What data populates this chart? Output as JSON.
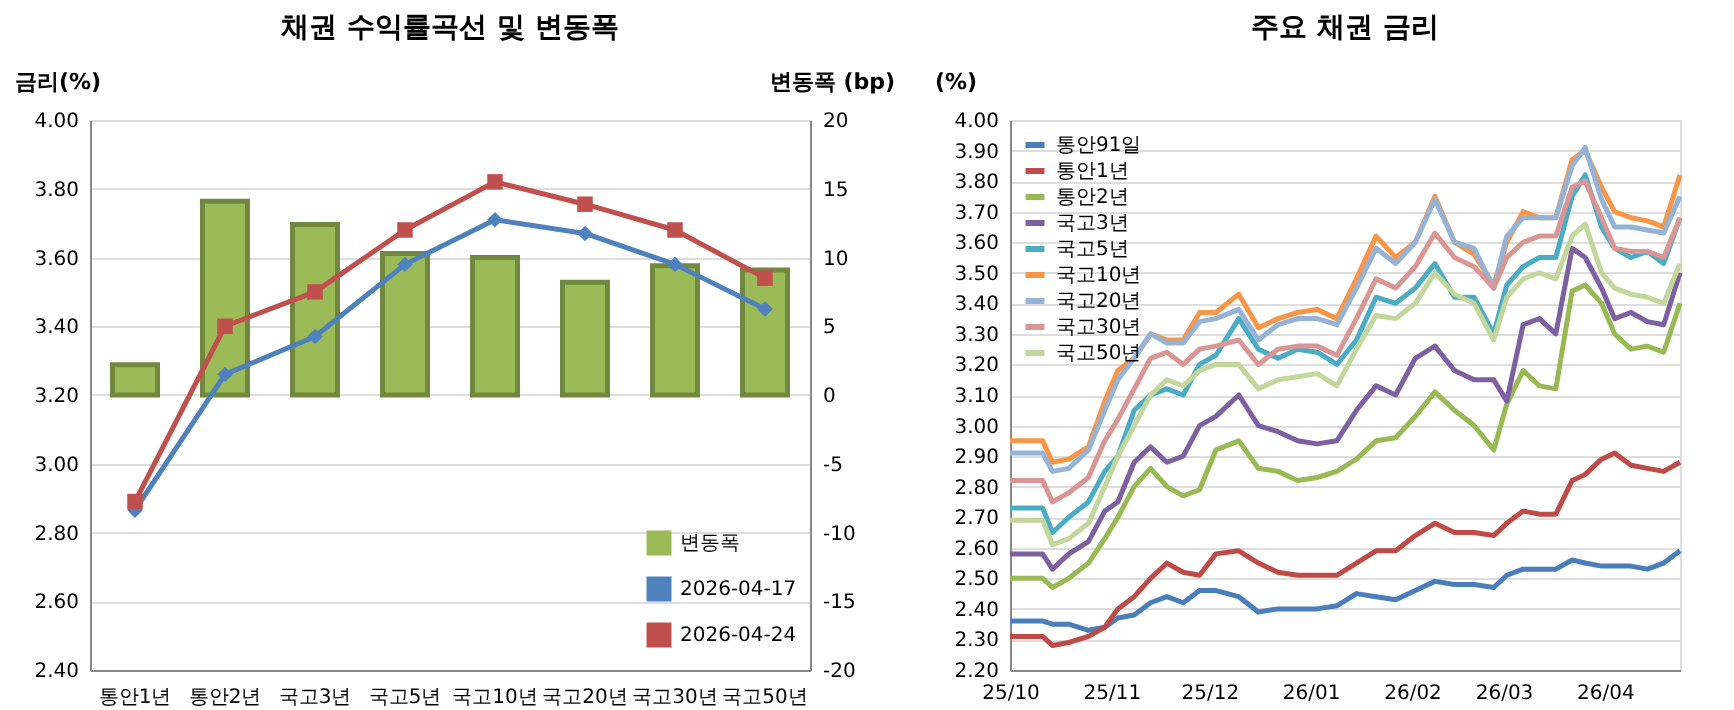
{
  "chart_data": [
    {
      "type": "bar",
      "title": "채권 수익률곡선 및 변동폭",
      "ylabel": "금리(%)",
      "y2label": "변동폭 (bp)",
      "categories": [
        "통안1년",
        "통안2년",
        "국고3년",
        "국고5년",
        "국고10년",
        "국고20년",
        "국고30년",
        "국고50년"
      ],
      "series": [
        {
          "name": "변동폭",
          "type": "bar",
          "axis": "y2",
          "color": "#9bbb59",
          "values": [
            2.2,
            14.1,
            12.4,
            10.3,
            10.0,
            8.2,
            9.4,
            9.1
          ]
        },
        {
          "name": "2026-04-17",
          "type": "line",
          "color": "#4f81bd",
          "marker": "diamond",
          "values": [
            2.865,
            3.26,
            3.37,
            3.58,
            3.71,
            3.67,
            3.58,
            3.45
          ]
        },
        {
          "name": "2026-04-24",
          "type": "line",
          "color": "#c0504d",
          "marker": "square",
          "values": [
            2.89,
            3.4,
            3.5,
            3.68,
            3.82,
            3.755,
            3.68,
            3.54
          ]
        }
      ],
      "ylim": [
        2.4,
        4.0
      ],
      "yticks": [
        {
          "value": 2.4,
          "label": "2.40"
        },
        {
          "value": 2.6,
          "label": "2.60"
        },
        {
          "value": 2.8,
          "label": "2.80"
        },
        {
          "value": 3.0,
          "label": "3.00"
        },
        {
          "value": 3.2,
          "label": "3.20"
        },
        {
          "value": 3.4,
          "label": "3.40"
        },
        {
          "value": 3.6,
          "label": "3.60"
        },
        {
          "value": 3.8,
          "label": "3.80"
        },
        {
          "value": 4.0,
          "label": "4.00"
        }
      ],
      "y2lim": [
        -20,
        20
      ],
      "y2ticks": [
        -20,
        -15,
        -10,
        -5,
        0,
        5,
        10,
        15,
        20
      ],
      "grid": "y",
      "legend": "bottom right"
    },
    {
      "type": "line",
      "title": "주요 채권 금리",
      "ylabel": "(%)",
      "marker": "none",
      "line_style": "solid",
      "x": [
        "2025-10-01",
        "2025-10-11",
        "2025-10-14",
        "2025-10-19",
        "2025-10-25",
        "2025-10-30",
        "2025-11-03",
        "2025-11-08",
        "2025-11-13",
        "2025-11-18",
        "2025-11-23",
        "2025-11-28",
        "2025-12-03",
        "2025-12-10",
        "2025-12-16",
        "2025-12-22",
        "2025-12-28",
        "2026-01-03",
        "2026-01-09",
        "2026-01-15",
        "2026-01-21",
        "2026-01-27",
        "2026-02-02",
        "2026-02-08",
        "2026-02-14",
        "2026-02-20",
        "2026-02-26",
        "2026-03-02",
        "2026-03-07",
        "2026-03-12",
        "2026-03-17",
        "2026-03-22",
        "2026-03-26",
        "2026-03-31",
        "2026-04-04",
        "2026-04-09",
        "2026-04-14",
        "2026-04-19",
        "2026-04-24"
      ],
      "series": [
        {
          "name": "통안91일",
          "color": "#4a7ebb",
          "values": [
            2.36,
            2.36,
            2.35,
            2.35,
            2.33,
            2.34,
            2.37,
            2.38,
            2.42,
            2.44,
            2.42,
            2.46,
            2.46,
            2.44,
            2.39,
            2.4,
            2.4,
            2.4,
            2.41,
            2.45,
            2.44,
            2.43,
            2.46,
            2.49,
            2.48,
            2.48,
            2.47,
            2.51,
            2.53,
            2.53,
            2.53,
            2.56,
            2.55,
            2.54,
            2.54,
            2.54,
            2.53,
            2.55,
            2.59
          ]
        },
        {
          "name": "통안1년",
          "color": "#be4b48",
          "values": [
            2.31,
            2.31,
            2.28,
            2.29,
            2.31,
            2.34,
            2.4,
            2.44,
            2.5,
            2.55,
            2.52,
            2.51,
            2.58,
            2.59,
            2.55,
            2.52,
            2.51,
            2.51,
            2.51,
            2.55,
            2.59,
            2.59,
            2.64,
            2.68,
            2.65,
            2.65,
            2.64,
            2.68,
            2.72,
            2.71,
            2.71,
            2.82,
            2.84,
            2.89,
            2.91,
            2.87,
            2.86,
            2.85,
            2.88
          ]
        },
        {
          "name": "통안2년",
          "color": "#98b954",
          "values": [
            2.5,
            2.5,
            2.47,
            2.5,
            2.55,
            2.63,
            2.7,
            2.8,
            2.86,
            2.8,
            2.77,
            2.79,
            2.92,
            2.95,
            2.86,
            2.85,
            2.82,
            2.83,
            2.85,
            2.89,
            2.95,
            2.96,
            3.03,
            3.11,
            3.05,
            3.0,
            2.92,
            3.07,
            3.18,
            3.13,
            3.12,
            3.44,
            3.46,
            3.4,
            3.3,
            3.25,
            3.26,
            3.24,
            3.4
          ]
        },
        {
          "name": "국고3년",
          "color": "#7d60a0",
          "values": [
            2.58,
            2.58,
            2.53,
            2.58,
            2.62,
            2.72,
            2.75,
            2.88,
            2.93,
            2.88,
            2.9,
            3.0,
            3.03,
            3.1,
            3.0,
            2.98,
            2.95,
            2.94,
            2.95,
            3.05,
            3.13,
            3.1,
            3.22,
            3.26,
            3.18,
            3.15,
            3.15,
            3.08,
            3.33,
            3.35,
            3.3,
            3.58,
            3.55,
            3.45,
            3.35,
            3.37,
            3.34,
            3.33,
            3.5
          ]
        },
        {
          "name": "국고5년",
          "color": "#4bacc6",
          "values": [
            2.73,
            2.73,
            2.65,
            2.7,
            2.75,
            2.85,
            2.9,
            3.05,
            3.1,
            3.12,
            3.1,
            3.2,
            3.23,
            3.35,
            3.25,
            3.22,
            3.25,
            3.24,
            3.2,
            3.28,
            3.42,
            3.4,
            3.45,
            3.53,
            3.42,
            3.42,
            3.3,
            3.46,
            3.52,
            3.55,
            3.55,
            3.75,
            3.82,
            3.65,
            3.58,
            3.55,
            3.57,
            3.53,
            3.68
          ]
        },
        {
          "name": "국고10년",
          "color": "#f79646",
          "values": [
            2.95,
            2.95,
            2.88,
            2.89,
            2.93,
            3.08,
            3.18,
            3.22,
            3.3,
            3.28,
            3.28,
            3.37,
            3.37,
            3.43,
            3.32,
            3.35,
            3.37,
            3.38,
            3.35,
            3.48,
            3.62,
            3.55,
            3.6,
            3.75,
            3.6,
            3.56,
            3.46,
            3.6,
            3.7,
            3.68,
            3.68,
            3.87,
            3.9,
            3.78,
            3.7,
            3.68,
            3.67,
            3.65,
            3.82
          ]
        },
        {
          "name": "국고20년",
          "color": "#95b3d7",
          "values": [
            2.91,
            2.91,
            2.85,
            2.86,
            2.92,
            3.05,
            3.15,
            3.22,
            3.3,
            3.27,
            3.27,
            3.34,
            3.35,
            3.38,
            3.28,
            3.33,
            3.35,
            3.35,
            3.33,
            3.45,
            3.58,
            3.53,
            3.6,
            3.74,
            3.6,
            3.58,
            3.45,
            3.62,
            3.68,
            3.68,
            3.68,
            3.85,
            3.91,
            3.74,
            3.65,
            3.65,
            3.64,
            3.63,
            3.75
          ]
        },
        {
          "name": "국고30년",
          "color": "#d99694",
          "values": [
            2.82,
            2.82,
            2.75,
            2.78,
            2.83,
            2.95,
            3.02,
            3.12,
            3.22,
            3.24,
            3.2,
            3.25,
            3.26,
            3.28,
            3.2,
            3.25,
            3.26,
            3.26,
            3.23,
            3.35,
            3.48,
            3.45,
            3.52,
            3.63,
            3.55,
            3.52,
            3.45,
            3.55,
            3.6,
            3.62,
            3.62,
            3.78,
            3.8,
            3.68,
            3.58,
            3.57,
            3.57,
            3.55,
            3.68
          ]
        },
        {
          "name": "국고50년",
          "color": "#c3d69b",
          "values": [
            2.69,
            2.69,
            2.61,
            2.63,
            2.68,
            2.8,
            2.9,
            3.0,
            3.1,
            3.15,
            3.13,
            3.18,
            3.2,
            3.2,
            3.12,
            3.15,
            3.16,
            3.17,
            3.13,
            3.25,
            3.36,
            3.35,
            3.4,
            3.5,
            3.43,
            3.4,
            3.28,
            3.42,
            3.48,
            3.5,
            3.48,
            3.62,
            3.66,
            3.5,
            3.45,
            3.43,
            3.42,
            3.4,
            3.53
          ]
        }
      ],
      "xlim": [
        "2025-10-01",
        "2026-04-24"
      ],
      "xticks": [
        {
          "value": "2025-10-01",
          "label": "25/10"
        },
        {
          "value": "2025-11-01",
          "label": "25/11"
        },
        {
          "value": "2025-12-01",
          "label": "25/12"
        },
        {
          "value": "2026-01-01",
          "label": "26/01"
        },
        {
          "value": "2026-02-01",
          "label": "26/02"
        },
        {
          "value": "2026-03-01",
          "label": "26/03"
        },
        {
          "value": "2026-04-01",
          "label": "26/04"
        }
      ],
      "ylim": [
        2.2,
        4.0
      ],
      "yticks": [
        {
          "value": 2.2,
          "label": "2.20"
        },
        {
          "value": 2.3,
          "label": "2.30"
        },
        {
          "value": 2.4,
          "label": "2.40"
        },
        {
          "value": 2.5,
          "label": "2.50"
        },
        {
          "value": 2.6,
          "label": "2.60"
        },
        {
          "value": 2.7,
          "label": "2.70"
        },
        {
          "value": 2.8,
          "label": "2.80"
        },
        {
          "value": 2.9,
          "label": "2.90"
        },
        {
          "value": 3.0,
          "label": "3.00"
        },
        {
          "value": 3.1,
          "label": "3.10"
        },
        {
          "value": 3.2,
          "label": "3.20"
        },
        {
          "value": 3.3,
          "label": "3.30"
        },
        {
          "value": 3.4,
          "label": "3.40"
        },
        {
          "value": 3.5,
          "label": "3.50"
        },
        {
          "value": 3.6,
          "label": "3.60"
        },
        {
          "value": 3.7,
          "label": "3.70"
        },
        {
          "value": 3.8,
          "label": "3.80"
        },
        {
          "value": 3.9,
          "label": "3.90"
        },
        {
          "value": 4.0,
          "label": "4.00"
        }
      ],
      "grid": "y",
      "legend": "top left"
    }
  ]
}
